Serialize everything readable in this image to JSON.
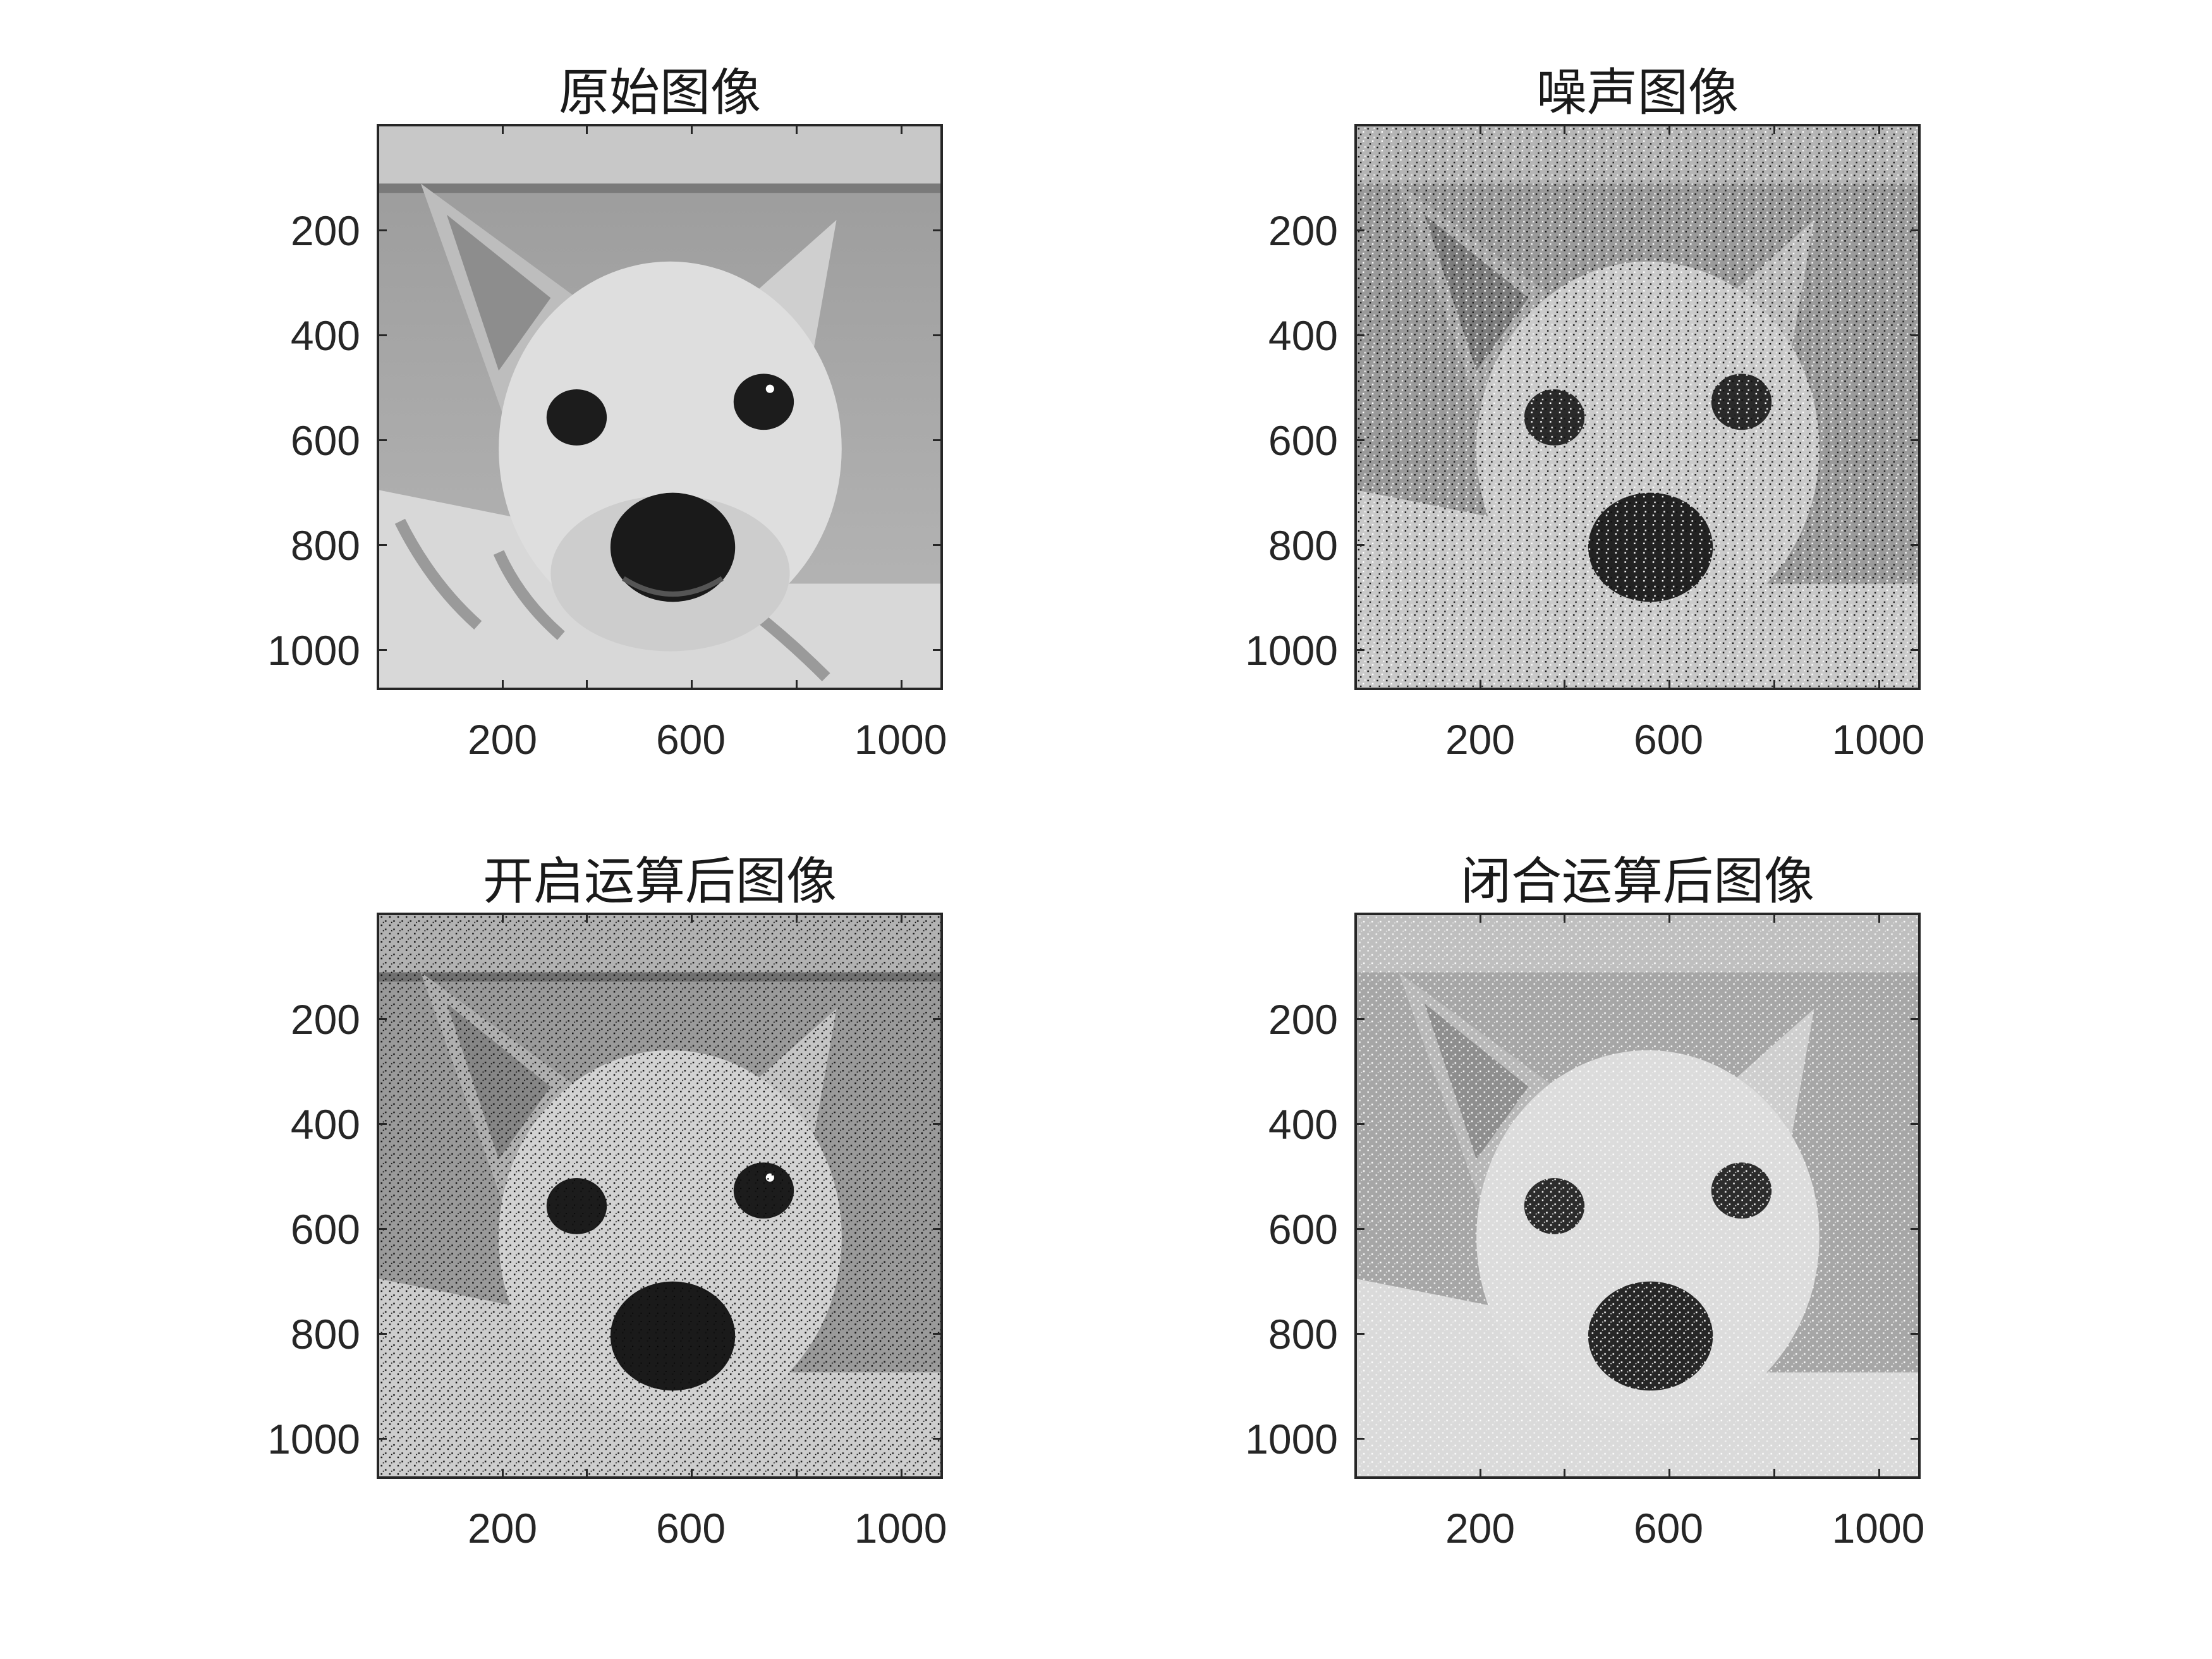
{
  "figure": {
    "panels": [
      {
        "title": "原始图像",
        "x_ticks": [
          "200",
          "600",
          "1000"
        ],
        "y_ticks": [
          "200",
          "400",
          "600",
          "800",
          "1000"
        ],
        "variant": "original"
      },
      {
        "title": "噪声图像",
        "x_ticks": [
          "200",
          "600",
          "1000"
        ],
        "y_ticks": [
          "200",
          "400",
          "600",
          "800",
          "1000"
        ],
        "variant": "noise"
      },
      {
        "title": "开启运算后图像",
        "x_ticks": [
          "200",
          "600",
          "1000"
        ],
        "y_ticks": [
          "200",
          "400",
          "600",
          "800",
          "1000"
        ],
        "variant": "opening"
      },
      {
        "title": "闭合运算后图像",
        "x_ticks": [
          "200",
          "600",
          "1000"
        ],
        "y_ticks": [
          "200",
          "400",
          "600",
          "800",
          "1000"
        ],
        "variant": "closing"
      }
    ],
    "image_subject": "grayscale dog face",
    "colors": {
      "axes": "#262626",
      "background": "#ffffff"
    }
  }
}
